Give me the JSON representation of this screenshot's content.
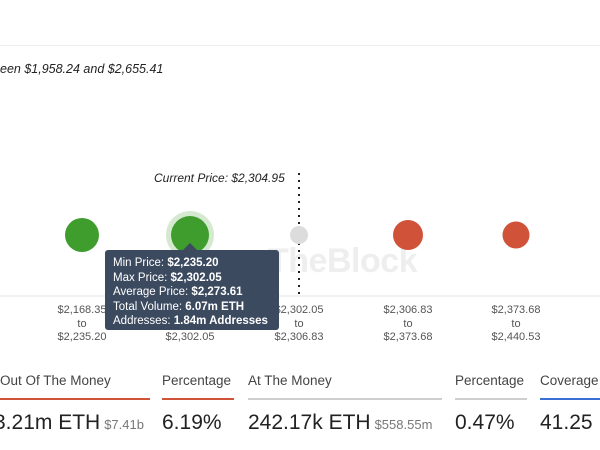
{
  "subtitle": "een $1,958.24 and $2,655.41",
  "watermark": "TheBlock",
  "chart_data": {
    "type": "scatter",
    "title": "een $1,958.24 and $2,655.41",
    "current_price_label": "Current Price: $2,304.95",
    "current_price": 2304.95,
    "bins": [
      {
        "from": "$2,168.35",
        "to": "$2,235.20",
        "status": "in",
        "color": "#3e9d2c",
        "highlight": false
      },
      {
        "from": "$2,235.20",
        "to": "$2,302.05",
        "status": "in",
        "color": "#3e9d2c",
        "highlight": true
      },
      {
        "from": "$2,302.05",
        "to": "$2,306.83",
        "status": "at",
        "color": "#dcdcdc",
        "highlight": false
      },
      {
        "from": "$2,306.83",
        "to": "$2,373.68",
        "status": "out",
        "color": "#d05238",
        "highlight": false
      },
      {
        "from": "$2,373.68",
        "to": "$2,440.53",
        "status": "out",
        "color": "#d05238",
        "highlight": false
      }
    ],
    "tick_connector": "to",
    "tooltip": {
      "rows": [
        {
          "label": "Min Price:",
          "value": "$2,235.20"
        },
        {
          "label": "Max Price:",
          "value": "$2,302.05"
        },
        {
          "label": "Average Price:",
          "value": "$2,273.61"
        },
        {
          "label": "Total Volume:",
          "value": "6.07m ETH"
        },
        {
          "label": "Addresses:",
          "value": "1.84m Addresses"
        }
      ]
    },
    "grid": false
  },
  "stats": [
    {
      "label": "Out Of The Money",
      "value": "3.21m ETH",
      "sub": "$7.41b",
      "color": "#d05238"
    },
    {
      "label": "Percentage",
      "value": "6.19%",
      "sub": "",
      "color": "#d05238"
    },
    {
      "label": "At The Money",
      "value": "242.17k ETH",
      "sub": "$558.55m",
      "color": "#cfcfcf"
    },
    {
      "label": "Percentage",
      "value": "0.47%",
      "sub": "",
      "color": "#cfcfcf"
    },
    {
      "label": "Coverage",
      "value": "41.25",
      "sub": "",
      "color": "#3b6fd6"
    }
  ]
}
